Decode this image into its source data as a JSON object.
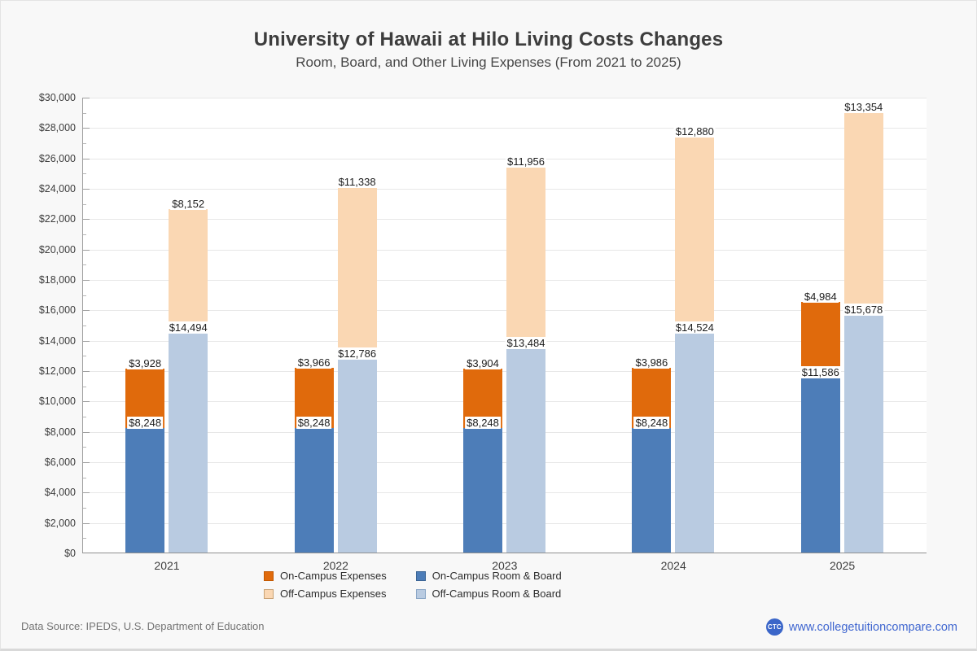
{
  "chart_data": {
    "type": "bar",
    "stacked": true,
    "title": "University of Hawaii at Hilo Living Costs Changes",
    "subtitle": "Room, Board, and Other Living Expenses (From 2021 to 2025)",
    "categories": [
      "2021",
      "2022",
      "2023",
      "2024",
      "2025"
    ],
    "series": [
      {
        "name": "On-Campus Room & Board",
        "stack": "on-campus",
        "color": "#4d7db8",
        "border_color": "#3a6494",
        "values": [
          8248,
          8248,
          8248,
          8248,
          11586
        ]
      },
      {
        "name": "On-Campus Expenses",
        "stack": "on-campus",
        "color": "#e06a0c",
        "border_color": "#c25800",
        "values": [
          3928,
          3966,
          3904,
          3986,
          4984
        ]
      },
      {
        "name": "Off-Campus Room & Board",
        "stack": "off-campus",
        "color": "#b9cbe1",
        "border_color": "#8aa6c6",
        "values": [
          14494,
          12786,
          13484,
          14524,
          15678
        ]
      },
      {
        "name": "Off-Campus Expenses",
        "stack": "off-campus",
        "color": "#fad7b3",
        "border_color": "#c9a276",
        "values": [
          8152,
          11338,
          11956,
          12880,
          13354
        ]
      }
    ],
    "ylim": [
      0,
      30000
    ],
    "ytick_step": 2000,
    "yminor_step": 1000,
    "value_prefix": "$",
    "grid": "horizontal-major",
    "value_labels": "above-each-segment",
    "legend_position": "bottom-center",
    "legend_order": [
      "On-Campus Expenses",
      "On-Campus Room & Board",
      "Off-Campus Expenses",
      "Off-Campus Room & Board"
    ]
  },
  "footer": {
    "data_source": "Data Source: IPEDS, U.S. Department of Education",
    "logo_text": "CTC",
    "site_url": "www.collegetuitioncompare.com",
    "link_color": "#3f66d0",
    "logo_color": "#3b66c9"
  }
}
